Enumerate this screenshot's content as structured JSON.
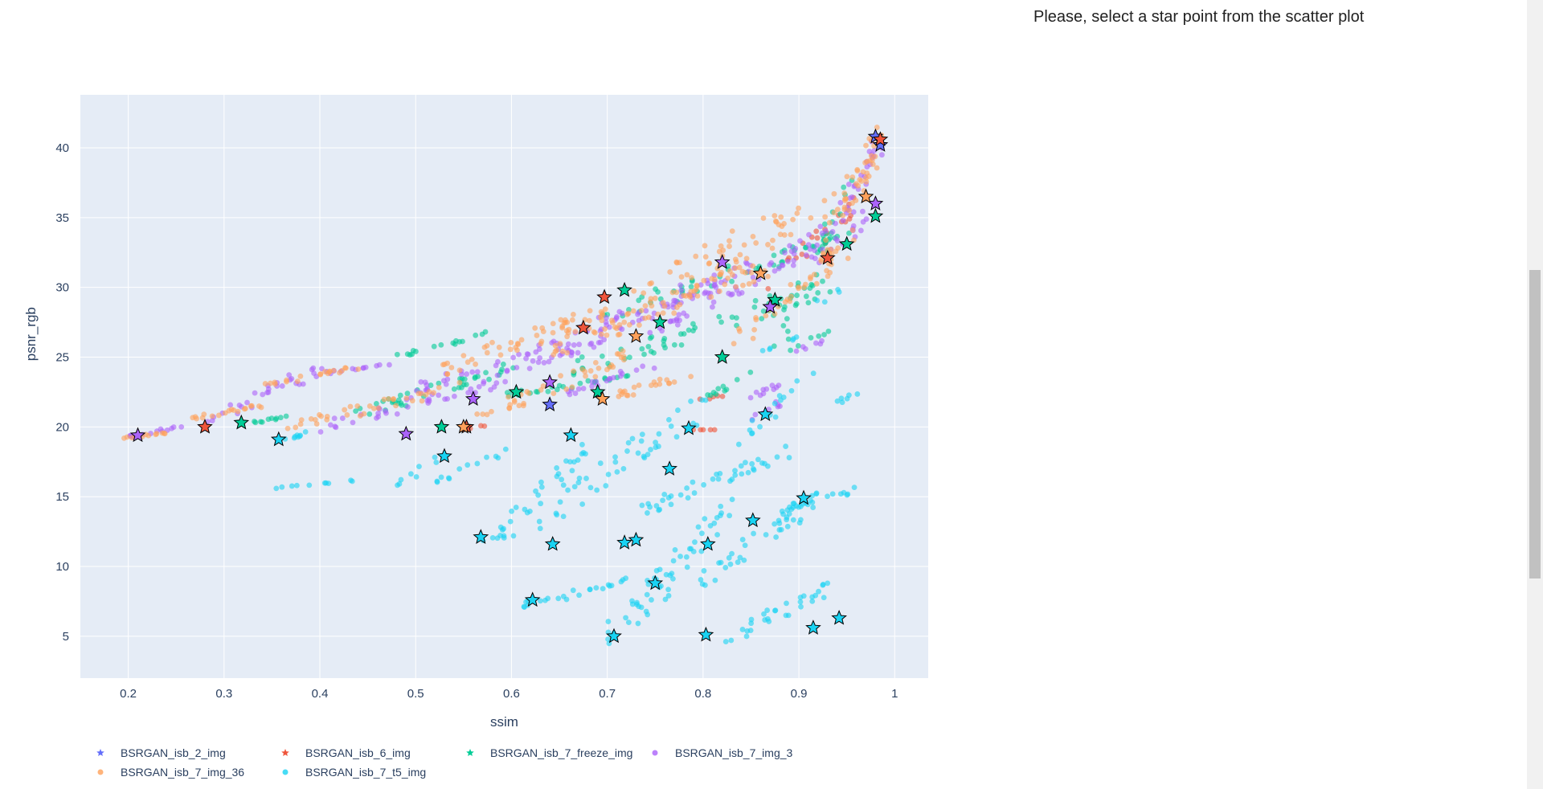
{
  "side_panel": {
    "message": "Please, select a star point from the scatter plot"
  },
  "chart_data": {
    "type": "scatter",
    "title": "",
    "xlabel": "ssim",
    "ylabel": "psnr_rgb",
    "xlim": [
      0.15,
      1.035
    ],
    "ylim": [
      2.0,
      43.8
    ],
    "xticks": [
      0.2,
      0.3,
      0.4,
      0.5,
      0.6,
      0.7,
      0.8,
      0.9,
      1
    ],
    "xtick_labels": [
      "0.2",
      "0.3",
      "0.4",
      "0.5",
      "0.6",
      "0.7",
      "0.8",
      "0.9",
      "1"
    ],
    "yticks": [
      5,
      10,
      15,
      20,
      25,
      30,
      35,
      40
    ],
    "ytick_labels": [
      "5",
      "10",
      "15",
      "20",
      "25",
      "30",
      "35",
      "40"
    ],
    "grid": true,
    "background": "#e5ecf6",
    "legend_position": "bottom",
    "series": [
      {
        "name": "BSRGAN_isb_2_img",
        "color": "#636efa",
        "marker": "star",
        "points": [
          [
            0.985,
            40.2
          ],
          [
            0.98,
            40.8
          ],
          [
            0.64,
            21.6
          ]
        ],
        "cloud": []
      },
      {
        "name": "BSRGAN_isb_6_img",
        "color": "#ef553b",
        "marker": "star",
        "points": [
          [
            0.28,
            20.0
          ],
          [
            0.553,
            20.0
          ],
          [
            0.697,
            29.3
          ],
          [
            0.93,
            32.1
          ],
          [
            0.675,
            27.1
          ],
          [
            0.985,
            40.6
          ]
        ],
        "cloud": [
          [
            0.78,
            19.8,
            0.81,
            19.8,
            6
          ],
          [
            0.79,
            21.8,
            0.82,
            22.3,
            5
          ],
          [
            0.87,
            30.2,
            0.96,
            36.2,
            20
          ],
          [
            0.55,
            19.9,
            0.57,
            20.1,
            4
          ]
        ]
      },
      {
        "name": "BSRGAN_isb_7_freeze_img",
        "color": "#00cc96",
        "marker": "star",
        "points": [
          [
            0.318,
            20.3
          ],
          [
            0.527,
            20.0
          ],
          [
            0.605,
            22.5
          ],
          [
            0.718,
            29.8
          ],
          [
            0.82,
            25.0
          ],
          [
            0.875,
            29.1
          ],
          [
            0.95,
            33.1
          ],
          [
            0.98,
            35.1
          ],
          [
            0.69,
            22.5
          ],
          [
            0.755,
            27.5
          ]
        ],
        "cloud": [
          [
            0.32,
            20.2,
            0.37,
            20.8,
            12
          ],
          [
            0.42,
            20.4,
            0.6,
            24.3,
            40
          ],
          [
            0.48,
            25.0,
            0.57,
            26.7,
            16
          ],
          [
            0.6,
            22.3,
            0.72,
            23.6,
            25
          ],
          [
            0.66,
            24.0,
            0.93,
            30.0,
            60
          ],
          [
            0.7,
            28.0,
            0.95,
            33.5,
            50
          ],
          [
            0.88,
            27.0,
            0.96,
            38.2,
            30
          ],
          [
            0.8,
            22.0,
            0.86,
            24.0,
            10
          ],
          [
            0.89,
            25.5,
            0.93,
            26.8,
            6
          ]
        ]
      },
      {
        "name": "BSRGAN_isb_7_img_3",
        "color": "#ab63fa",
        "marker": "circle",
        "points": [
          [
            0.21,
            19.4
          ],
          [
            0.49,
            19.5
          ],
          [
            0.56,
            22.0
          ],
          [
            0.82,
            31.8
          ],
          [
            0.87,
            28.6
          ],
          [
            0.98,
            36.0
          ],
          [
            0.64,
            23.2
          ]
        ],
        "cloud": [
          [
            0.2,
            19.3,
            0.26,
            20.1,
            15
          ],
          [
            0.28,
            20.3,
            0.4,
            24.2,
            30
          ],
          [
            0.4,
            23.8,
            0.48,
            24.6,
            12
          ],
          [
            0.4,
            20.0,
            0.6,
            23.5,
            40
          ],
          [
            0.5,
            22.8,
            0.7,
            26.2,
            40
          ],
          [
            0.6,
            24.5,
            0.85,
            31.2,
            70
          ],
          [
            0.74,
            27.0,
            0.97,
            35.0,
            80
          ],
          [
            0.85,
            22.0,
            0.88,
            23.0,
            10
          ],
          [
            0.66,
            22.5,
            0.75,
            24.5,
            20
          ],
          [
            0.92,
            32.0,
            0.99,
            41.0,
            30
          ],
          [
            0.85,
            20.5,
            0.88,
            21.8,
            8
          ],
          [
            0.9,
            25.5,
            0.93,
            26.5,
            6
          ]
        ]
      },
      {
        "name": "BSRGAN_isb_7_img_36",
        "color": "#ffa15a",
        "marker": "circle",
        "points": [
          [
            0.55,
            20.0
          ],
          [
            0.695,
            22.0
          ],
          [
            0.86,
            31.0
          ],
          [
            0.73,
            26.5
          ],
          [
            0.97,
            36.5
          ]
        ],
        "cloud": [
          [
            0.2,
            19.2,
            0.24,
            19.6,
            12
          ],
          [
            0.26,
            20.5,
            0.35,
            21.7,
            18
          ],
          [
            0.34,
            23.0,
            0.44,
            24.3,
            20
          ],
          [
            0.37,
            20.0,
            0.55,
            23.0,
            35
          ],
          [
            0.52,
            24.0,
            0.7,
            28.3,
            50
          ],
          [
            0.56,
            20.5,
            0.72,
            25.0,
            40
          ],
          [
            0.62,
            25.0,
            0.87,
            31.7,
            70
          ],
          [
            0.7,
            28.0,
            0.98,
            38.0,
            80
          ],
          [
            0.83,
            26.0,
            0.96,
            33.5,
            40
          ],
          [
            0.93,
            33.0,
            0.99,
            41.5,
            35
          ],
          [
            0.7,
            22.0,
            0.8,
            24.0,
            20
          ]
        ]
      },
      {
        "name": "BSRGAN_isb_7_t5_img",
        "color": "#19d3f3",
        "marker": "circle",
        "points": [
          [
            0.357,
            19.1
          ],
          [
            0.53,
            17.9
          ],
          [
            0.568,
            12.1
          ],
          [
            0.622,
            7.6
          ],
          [
            0.643,
            11.6
          ],
          [
            0.662,
            19.4
          ],
          [
            0.707,
            5.0
          ],
          [
            0.73,
            11.9
          ],
          [
            0.75,
            8.8
          ],
          [
            0.765,
            17.0
          ],
          [
            0.785,
            19.9
          ],
          [
            0.805,
            11.6
          ],
          [
            0.803,
            5.1
          ],
          [
            0.852,
            13.3
          ],
          [
            0.865,
            20.9
          ],
          [
            0.905,
            14.9
          ],
          [
            0.915,
            5.6
          ],
          [
            0.942,
            6.3
          ],
          [
            0.718,
            11.7
          ]
        ],
        "cloud": [
          [
            0.36,
            19.0,
            0.4,
            19.9,
            8
          ],
          [
            0.35,
            15.6,
            0.44,
            16.2,
            10
          ],
          [
            0.48,
            15.6,
            0.52,
            17.9,
            8
          ],
          [
            0.52,
            16.0,
            0.6,
            18.3,
            12
          ],
          [
            0.58,
            12.0,
            0.68,
            18.3,
            30
          ],
          [
            0.6,
            7.0,
            0.72,
            9.0,
            20
          ],
          [
            0.62,
            13.0,
            0.8,
            21.5,
            45
          ],
          [
            0.7,
            4.8,
            0.83,
            14.0,
            55
          ],
          [
            0.73,
            14.0,
            0.9,
            18.5,
            40
          ],
          [
            0.8,
            9.0,
            0.92,
            15.0,
            40
          ],
          [
            0.82,
            4.5,
            0.93,
            8.5,
            30
          ],
          [
            0.88,
            14.0,
            0.96,
            15.5,
            18
          ],
          [
            0.84,
            19.0,
            0.91,
            23.5,
            15
          ],
          [
            0.86,
            25.5,
            0.9,
            26.5,
            6
          ],
          [
            0.94,
            21.8,
            0.96,
            22.5,
            6
          ],
          [
            0.92,
            29.0,
            0.95,
            30.0,
            4
          ],
          [
            0.57,
            11.8,
            0.6,
            12.2,
            4
          ],
          [
            0.62,
            7.4,
            0.65,
            7.9,
            4
          ]
        ]
      }
    ]
  }
}
